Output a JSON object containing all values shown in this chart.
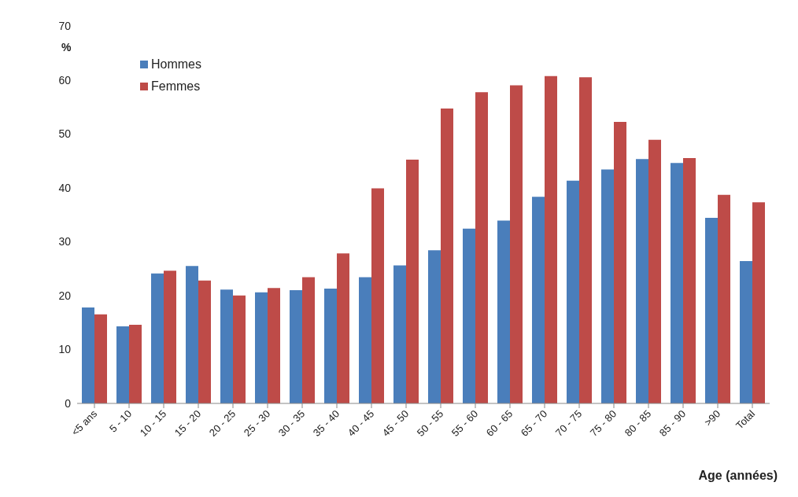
{
  "chart_data": {
    "type": "bar",
    "xlabel": "Age (années)",
    "ylabel": "%",
    "categories": [
      "<5 ans",
      "5 - 10",
      "10 - 15",
      "15 - 20",
      "20 - 25",
      "25 - 30",
      "30 - 35",
      "35 - 40",
      "40 - 45",
      "45 - 50",
      "50 - 55",
      "55 - 60",
      "60 - 65",
      "65 - 70",
      "70 - 75",
      "75 - 80",
      "80 - 85",
      "85 - 90",
      ">90",
      "Total"
    ],
    "series": [
      {
        "name": "Hommes",
        "color": "#4a7ebb",
        "values": [
          17.8,
          14.3,
          24.1,
          25.5,
          21.1,
          20.6,
          21.0,
          21.3,
          23.4,
          25.6,
          28.4,
          32.4,
          33.9,
          38.3,
          41.3,
          43.4,
          45.3,
          44.6,
          34.4,
          26.4
        ]
      },
      {
        "name": "Femmes",
        "color": "#be4b48",
        "values": [
          16.5,
          14.6,
          24.6,
          22.8,
          20.0,
          21.4,
          23.4,
          27.8,
          39.9,
          45.2,
          54.7,
          57.7,
          59.0,
          60.7,
          60.5,
          52.2,
          48.9,
          45.5,
          38.7,
          37.3
        ]
      }
    ],
    "ylim": [
      0,
      70
    ],
    "yticks": [
      0,
      10,
      20,
      30,
      40,
      50,
      60,
      70
    ],
    "grid": false,
    "legend": "top left"
  }
}
